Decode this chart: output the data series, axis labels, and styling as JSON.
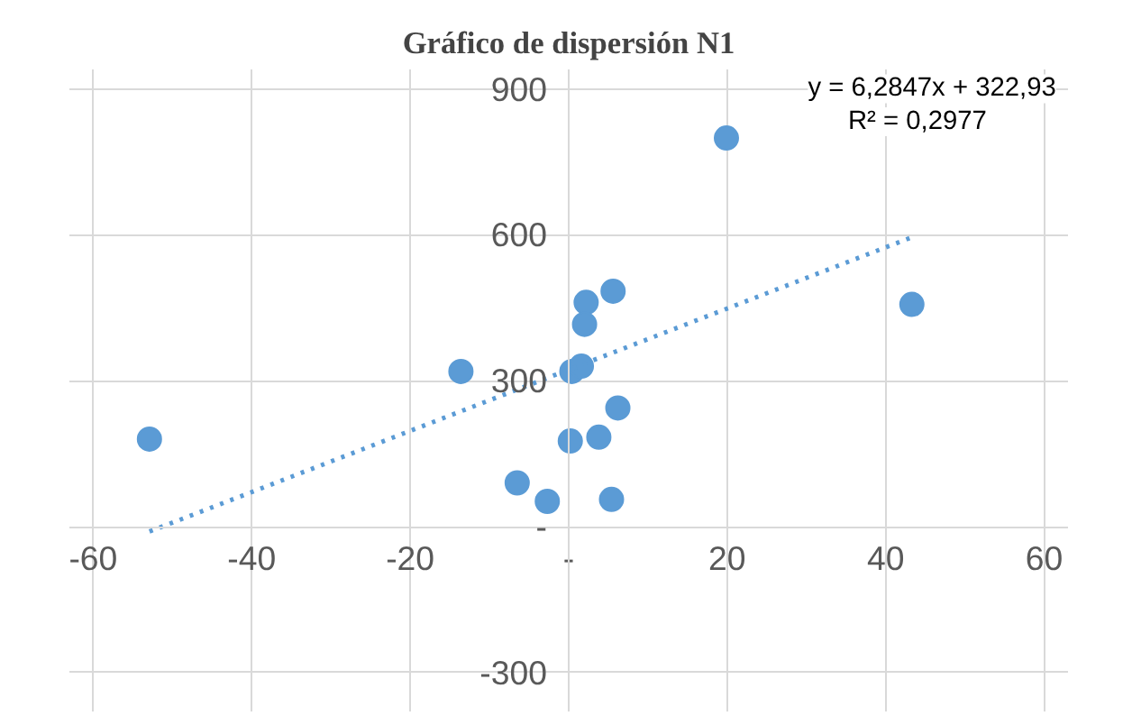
{
  "chart_data": {
    "type": "scatter",
    "title": "Gráfico de dispersión N1",
    "xlim": [
      -63,
      63
    ],
    "ylim": [
      -380,
      940
    ],
    "xticks": [
      -60,
      -40,
      -20,
      {
        "value": 0,
        "label": "-"
      },
      20,
      40,
      60
    ],
    "yticks": [
      -300,
      {
        "value": 0,
        "label": "-"
      },
      300,
      600,
      900
    ],
    "grid": true,
    "marker": "circle",
    "series": [
      {
        "type": "scatter",
        "color": "#5b9bd5",
        "x": [
          -52.9,
          -13.6,
          -6.5,
          -2.7,
          0.2,
          0.4,
          1.6,
          2.2,
          2.0,
          3.8,
          5.6,
          6.2,
          5.4,
          19.9,
          43.3
        ],
        "values": [
          180,
          319,
          90,
          52,
          176,
          319,
          330,
          461,
          416,
          184,
          484,
          244,
          56,
          799,
          457
        ]
      },
      {
        "type": "line",
        "color": "#5b9bd5",
        "line_style": "dotted",
        "marker": "none",
        "x": [
          -52.9,
          43.3
        ],
        "values": [
          -10,
          595
        ]
      }
    ],
    "annotations": [
      "y = 6,2847x + 322,93",
      "R² = 0,2977"
    ]
  }
}
